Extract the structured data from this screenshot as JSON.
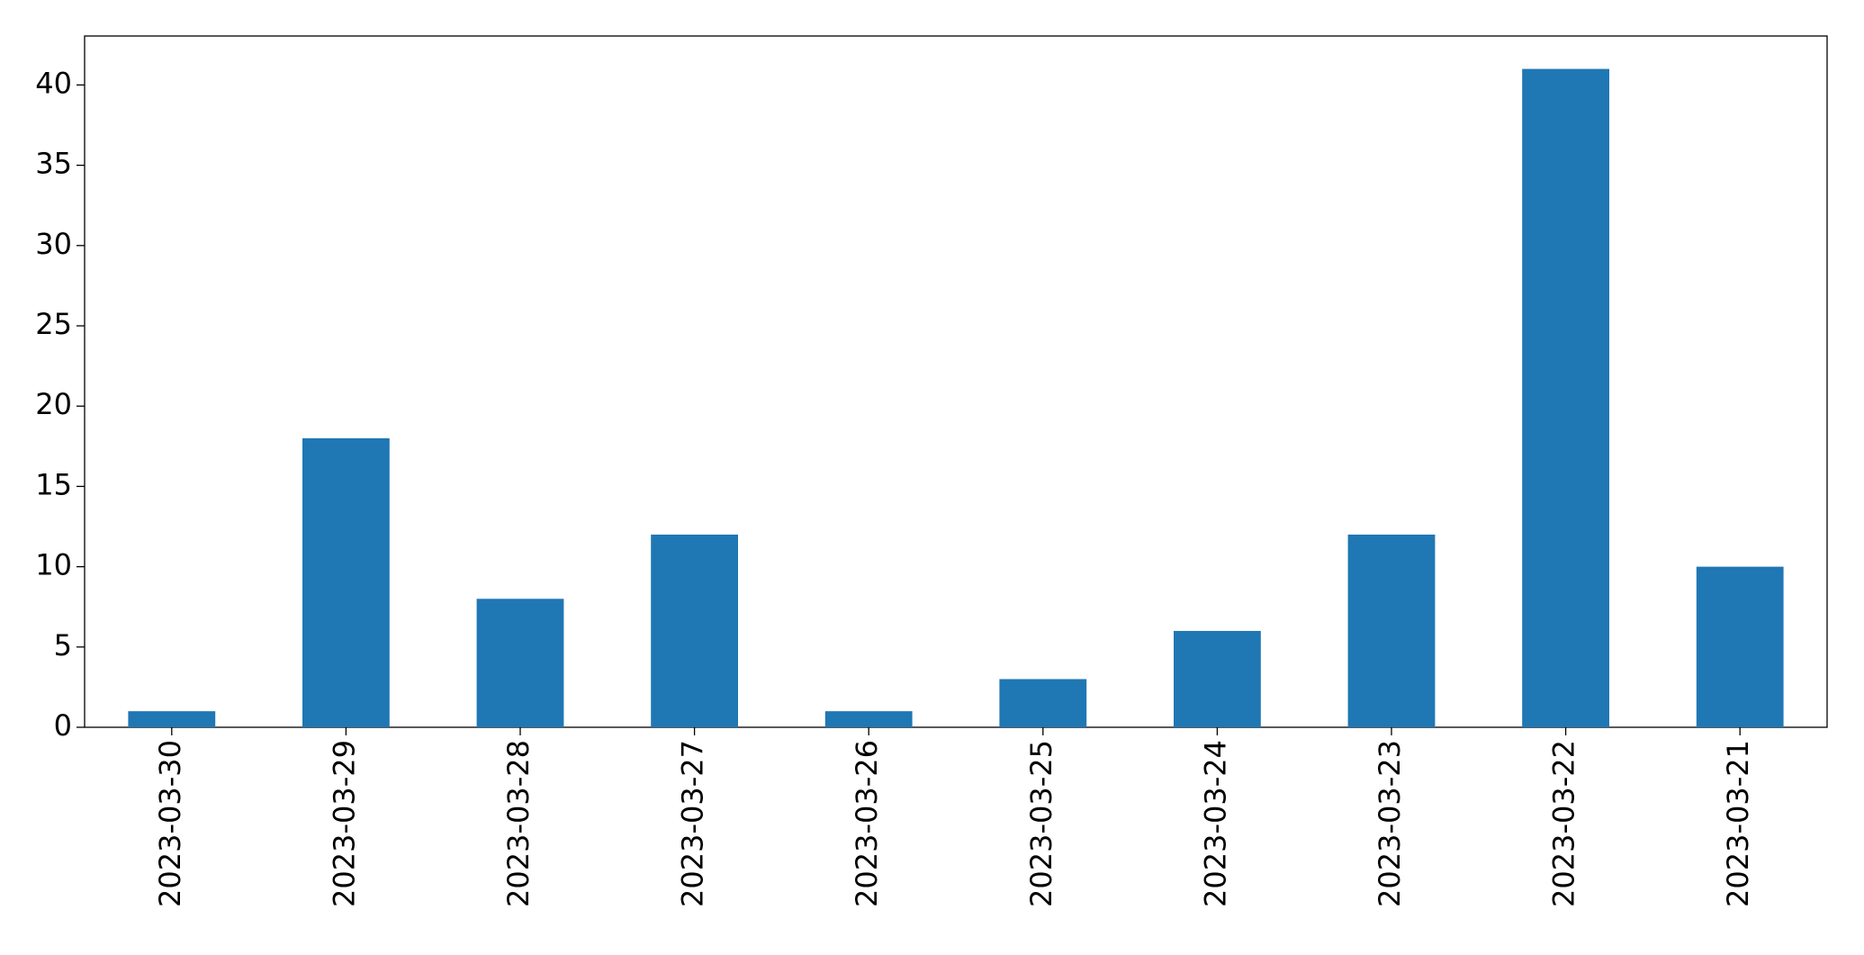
{
  "chart_data": {
    "type": "bar",
    "categories": [
      "2023-03-30",
      "2023-03-29",
      "2023-03-28",
      "2023-03-27",
      "2023-03-26",
      "2023-03-25",
      "2023-03-24",
      "2023-03-23",
      "2023-03-22",
      "2023-03-21"
    ],
    "values": [
      1,
      18,
      8,
      12,
      1,
      3,
      6,
      12,
      41,
      10
    ],
    "color": "#1f77b4",
    "ylim": [
      0,
      43.05
    ],
    "yticks": [
      0,
      5,
      10,
      15,
      20,
      25,
      30,
      35,
      40
    ],
    "grid": false
  }
}
